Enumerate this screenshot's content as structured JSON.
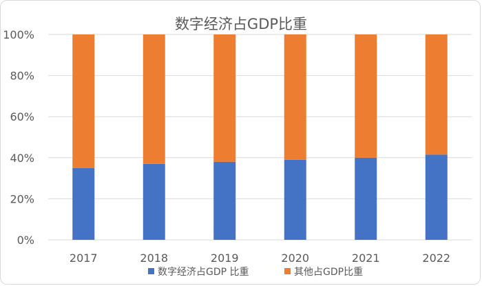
{
  "chart_data": {
    "type": "bar",
    "stacked": true,
    "title": "数字经济占GDP比重",
    "categories": [
      "2017",
      "2018",
      "2019",
      "2020",
      "2021",
      "2022"
    ],
    "series": [
      {
        "name": "数字经济占GDP 比重",
        "color": "#4472c4",
        "values": [
          35,
          37,
          38,
          39,
          40,
          41.5
        ]
      },
      {
        "name": "其他占GDP比重",
        "color": "#ed7d31",
        "values": [
          65,
          63,
          62,
          61,
          60,
          58.5
        ]
      }
    ],
    "ylim": [
      0,
      100
    ],
    "yticks": [
      "0%",
      "20%",
      "40%",
      "60%",
      "80%",
      "100%"
    ],
    "grid": true,
    "legend": "bottom"
  }
}
